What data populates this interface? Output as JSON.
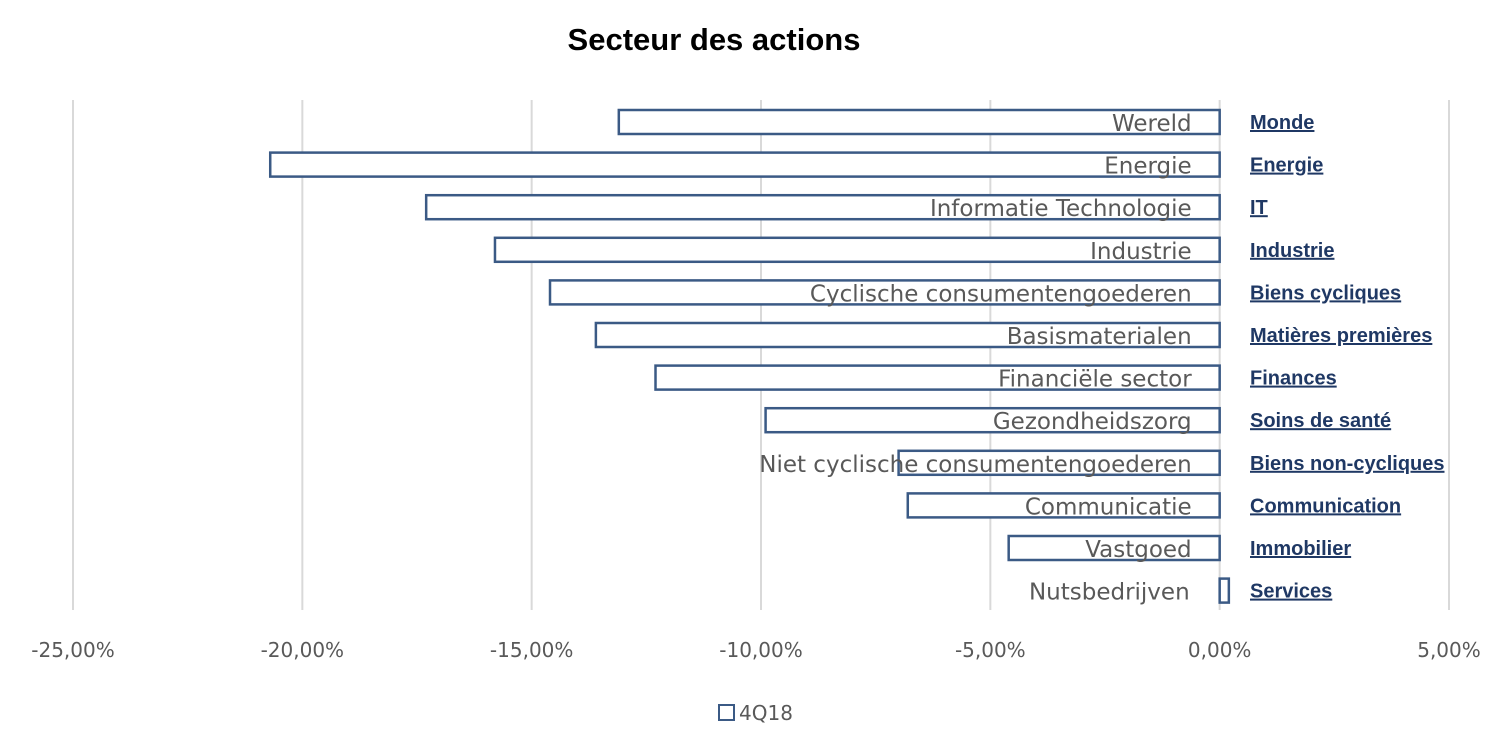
{
  "chart_data": {
    "type": "bar",
    "orientation": "horizontal",
    "title": "Secteur des actions",
    "categories": [
      "Wereld",
      "Energie",
      "Informatie Technologie",
      "Industrie",
      "Cyclische consumentengoederen",
      "Basismaterialen",
      "Financiële sector",
      "Gezondheidszorg",
      "Niet cyclische consumentengoederen",
      "Communicatie",
      "Vastgoed",
      "Nutsbedrijven"
    ],
    "category_labels_fr": [
      "Monde",
      "Energie",
      "IT",
      "Industrie",
      "Biens cycliques",
      "Matières premières",
      "Finances",
      "Soins de santé",
      "Biens non-cycliques",
      "Communication",
      "Immobilier",
      "Services"
    ],
    "series": [
      {
        "name": "4Q18",
        "values": [
          -13.1,
          -20.7,
          -17.3,
          -15.8,
          -14.6,
          -13.6,
          -12.3,
          -9.9,
          -7.0,
          -6.8,
          -4.6,
          0.2
        ]
      }
    ],
    "xlim": [
      -25,
      5
    ],
    "xticks": [
      -25,
      -20,
      -15,
      -10,
      -5,
      0,
      5
    ],
    "xtick_labels": [
      "-25,00%",
      "-20,00%",
      "-15,00%",
      "-10,00%",
      "-5,00%",
      "0,00%",
      "5,00%"
    ],
    "xlabel": "",
    "ylabel": "",
    "grid": true,
    "legend_position": "bottom",
    "colors": {
      "bar_outline": "#3b5a85",
      "bar_fill": "#ffffff",
      "grid": "#d9d9d9",
      "annotation": "#1f3864"
    }
  }
}
